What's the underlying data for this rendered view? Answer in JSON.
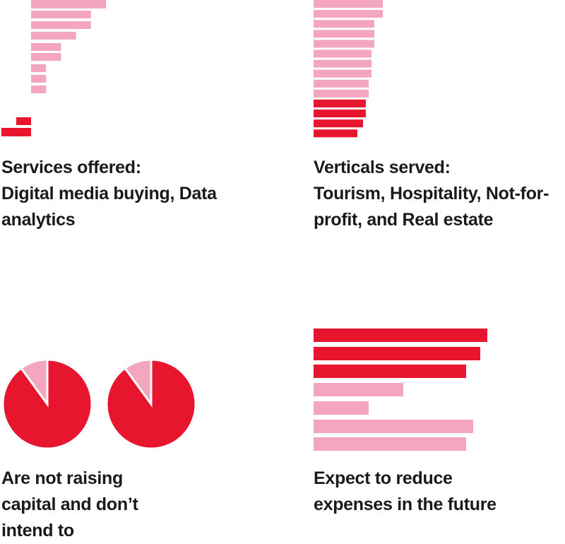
{
  "colors": {
    "highlight": "#e8152f",
    "base": "#f4a6bf",
    "text": "#1a1a1a",
    "background": "#ffffff"
  },
  "panels": {
    "services": {
      "caption_lines": [
        "Services offered:",
        "Digital media buying, Data",
        "analytics"
      ]
    },
    "verticals": {
      "caption_lines": [
        "Verticals served:",
        "Tourism, Hospitality, Not-for-",
        "profit, and Real estate"
      ]
    },
    "raising": {
      "caption_lines": [
        "Are not raising",
        "capital and don’t",
        "intend to"
      ]
    },
    "expenses": {
      "caption_lines": [
        "Expect to reduce",
        "expenses in the future"
      ]
    }
  },
  "chart_data": [
    {
      "id": "services",
      "type": "bar",
      "orientation": "horizontal",
      "title": "",
      "partially_cropped": true,
      "values": [
        10,
        8,
        8,
        6,
        4,
        4,
        2,
        2,
        2,
        1,
        2
      ],
      "highlighted": [
        false,
        false,
        false,
        false,
        false,
        false,
        false,
        false,
        false,
        true,
        true
      ],
      "grid": false,
      "legend": "none"
    },
    {
      "id": "verticals",
      "type": "bar",
      "orientation": "horizontal",
      "title": "",
      "partially_cropped": true,
      "values": [
        98,
        98,
        86,
        86,
        86,
        82,
        82,
        82,
        78,
        78,
        74,
        74,
        70,
        62
      ],
      "highlighted": [
        false,
        false,
        false,
        false,
        false,
        false,
        false,
        false,
        false,
        false,
        true,
        true,
        true,
        true
      ],
      "grid": false,
      "legend": "none"
    },
    {
      "id": "raising",
      "type": "pie",
      "pies": [
        {
          "slices": [
            {
              "value": 90,
              "highlighted": true
            },
            {
              "value": 10,
              "highlighted": false
            }
          ]
        },
        {
          "slices": [
            {
              "value": 90,
              "highlighted": true
            },
            {
              "value": 10,
              "highlighted": false
            }
          ]
        }
      ],
      "legend": "none"
    },
    {
      "id": "expenses",
      "type": "bar",
      "orientation": "horizontal",
      "title": "",
      "values": [
        246,
        236,
        216,
        127,
        78,
        226,
        216
      ],
      "highlighted": [
        true,
        true,
        true,
        false,
        false,
        false,
        false
      ],
      "grid": false,
      "legend": "none"
    }
  ]
}
